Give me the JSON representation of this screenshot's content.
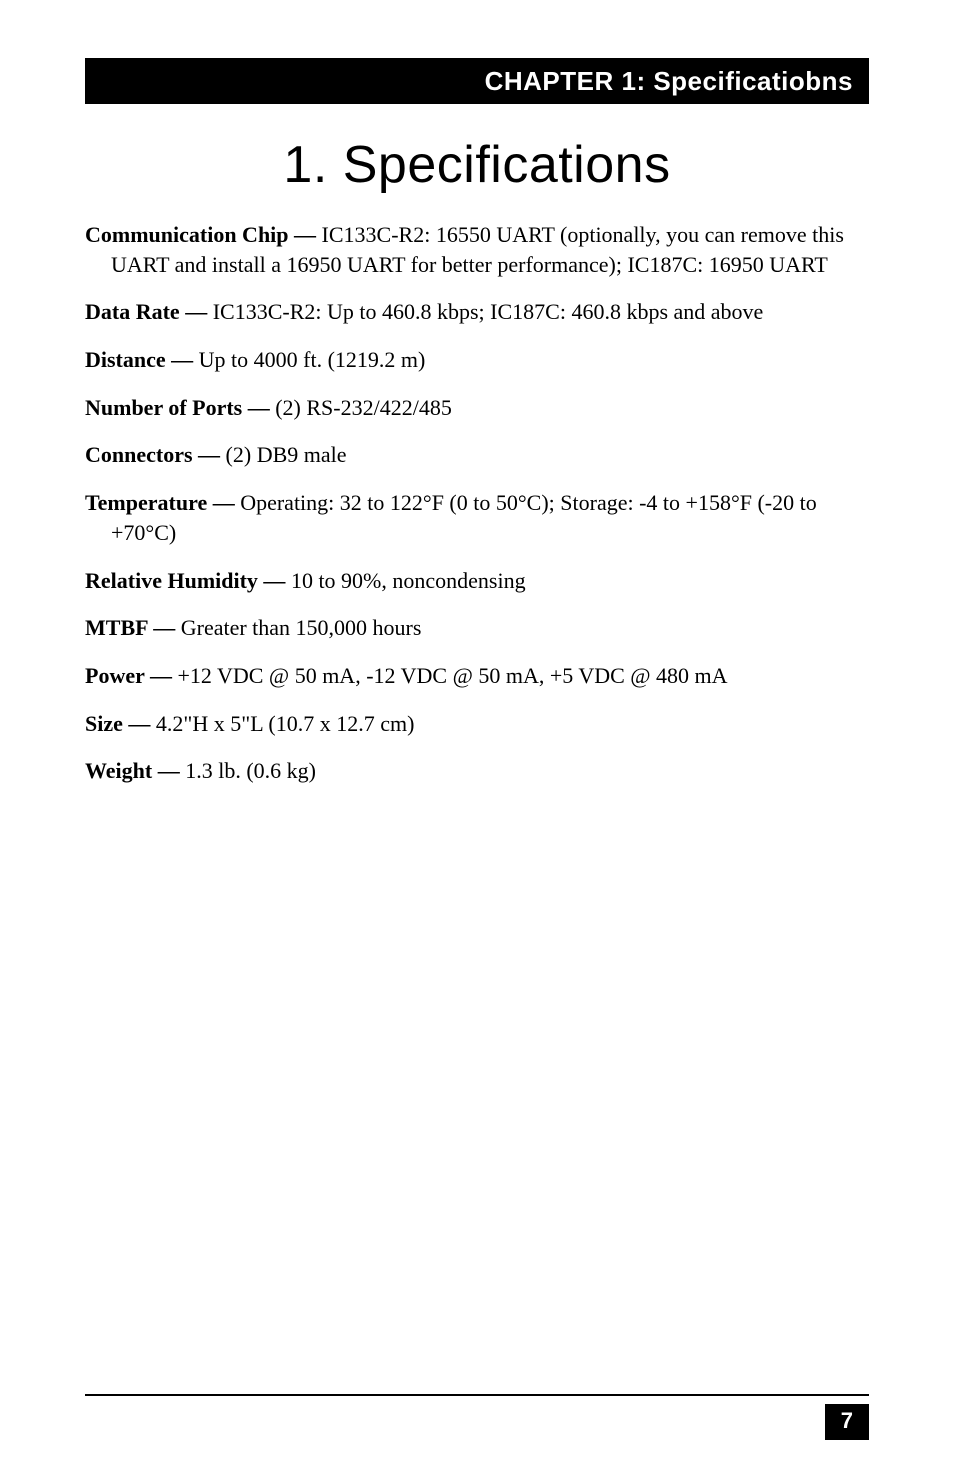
{
  "header": {
    "text": "CHAPTER 1: Specificatiobns",
    "bg_color": "#000000",
    "text_color": "#ffffff",
    "fontsize": 26,
    "font_family": "Arial"
  },
  "title": {
    "text": "1. Specifications",
    "fontsize": 52,
    "font_family": "Arial"
  },
  "specs": [
    {
      "label": "Communication Chip —",
      "value": " IC133C-R2: 16550 UART (optionally, you can remove this UART and install a 16950 UART for better performance); IC187C: 16950 UART"
    },
    {
      "label": "Data Rate —",
      "value": " IC133C-R2: Up to 460.8 kbps; IC187C: 460.8 kbps and above"
    },
    {
      "label": "Distance —",
      "value": " Up to 4000 ft. (1219.2 m)"
    },
    {
      "label": "Number of Ports —",
      "value": " (2) RS-232/422/485"
    },
    {
      "label": "Connectors —",
      "value": " (2) DB9 male"
    },
    {
      "label": "Temperature —",
      "value": " Operating: 32 to 122°F (0 to 50°C); Storage: -4 to +158°F (-20 to +70°C)"
    },
    {
      "label": "Relative Humidity —",
      "value": " 10 to 90%, noncondensing"
    },
    {
      "label": "MTBF —",
      "value": " Greater than 150,000 hours"
    },
    {
      "label": "Power —",
      "value": " +12 VDC @ 50 mA, -12 VDC @ 50 mA, +5 VDC @ 480 mA"
    },
    {
      "label": "Size —",
      "value": " 4.2\"H x 5\"L (10.7 x 12.7 cm)"
    },
    {
      "label": "Weight —",
      "value": " 1.3 lb. (0.6 kg)"
    }
  ],
  "footer": {
    "page_number": "7",
    "bg_color": "#000000",
    "text_color": "#ffffff"
  },
  "body_style": {
    "font_family": "Times New Roman",
    "fontsize": 22,
    "background_color": "#ffffff",
    "text_color": "#000000"
  }
}
